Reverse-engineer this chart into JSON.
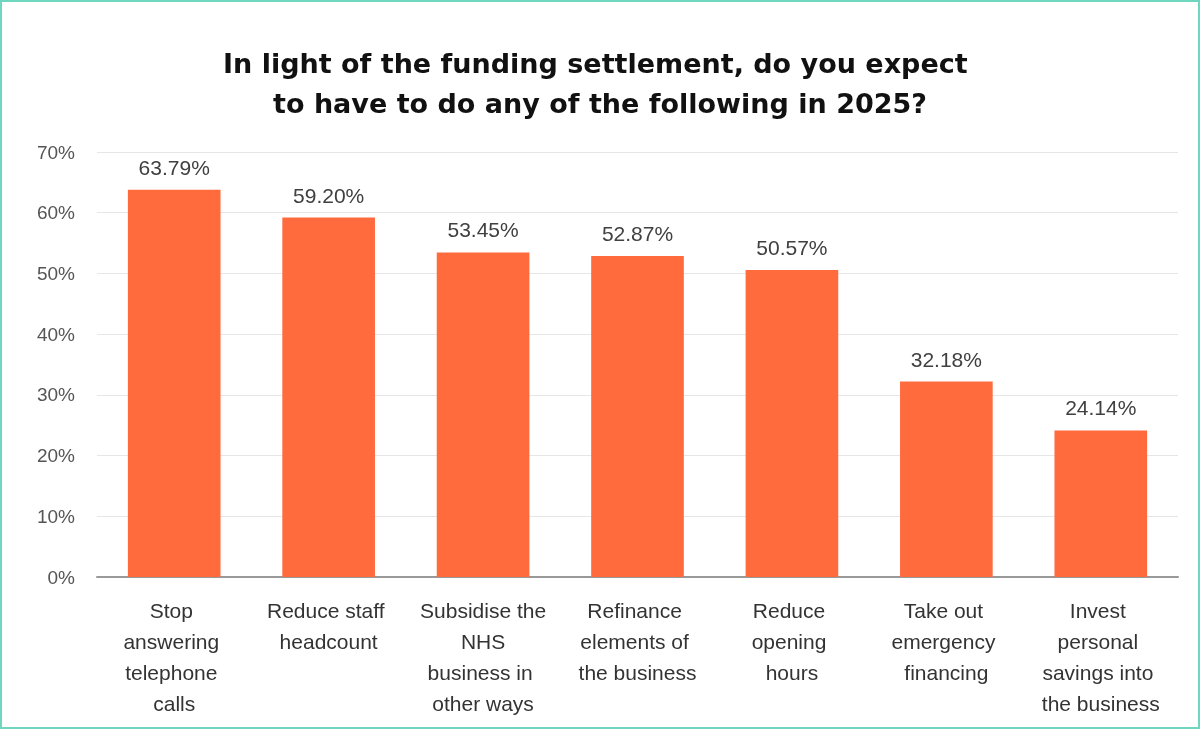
{
  "chart_data": {
    "type": "bar",
    "title": "In light of the funding settlement, do you expect to have to do any of the following in 2025?",
    "categories": [
      "Stop answering telephone calls",
      "Reduce staff headcount",
      "Subsidise the NHS business in other ways",
      "Refinance elements of the business",
      "Reduce opening hours",
      "Take out emergency financing",
      "Invest personal savings into the business"
    ],
    "values": [
      63.79,
      59.2,
      53.45,
      52.87,
      50.57,
      32.18,
      24.14
    ],
    "value_labels": [
      "63.79%",
      "59.20%",
      "53.45%",
      "52.87%",
      "50.57%",
      "32.18%",
      "24.14%"
    ],
    "color": "#ff6b3d",
    "ylim": [
      0,
      70
    ],
    "yticks": [
      {
        "value": 0,
        "label": "0%"
      },
      {
        "value": 10,
        "label": "10%"
      },
      {
        "value": 20,
        "label": "20%"
      },
      {
        "value": 30,
        "label": "30%"
      },
      {
        "value": 40,
        "label": "40%"
      },
      {
        "value": 50,
        "label": "50%"
      },
      {
        "value": 60,
        "label": "60%"
      },
      {
        "value": 70,
        "label": "70%"
      }
    ],
    "grid": "y"
  }
}
